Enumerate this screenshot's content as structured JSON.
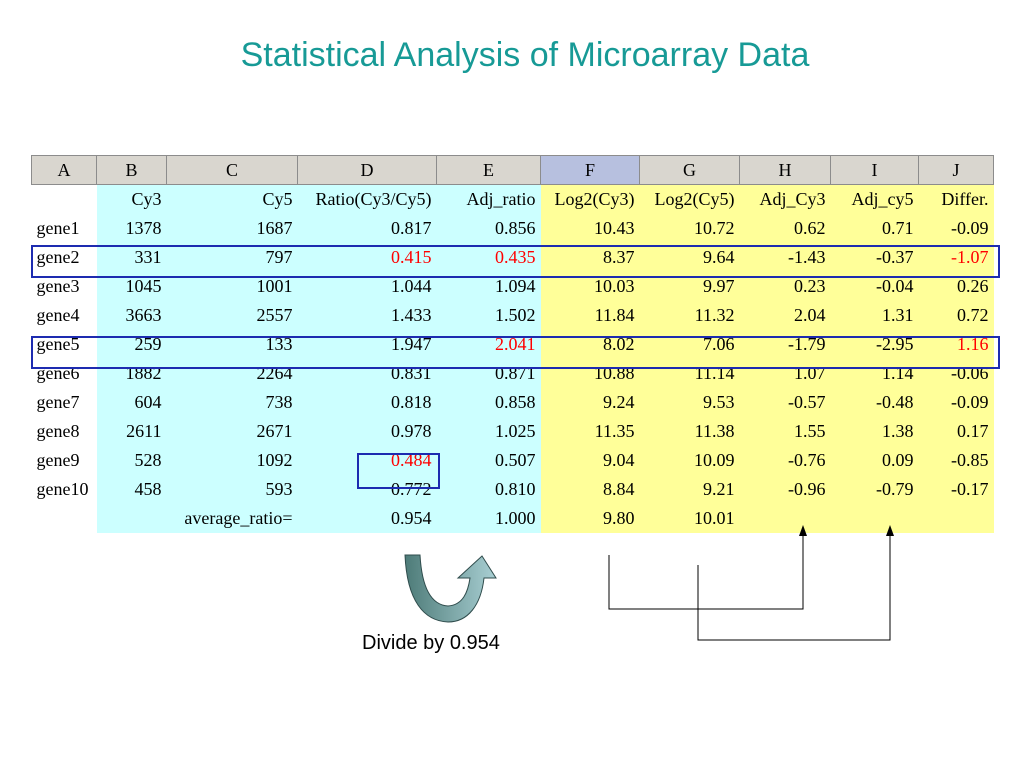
{
  "title": "Statistical Analysis of Microarray Data",
  "caption": "Divide by 0.954",
  "columns": [
    "A",
    "B",
    "C",
    "D",
    "E",
    "F",
    "G",
    "H",
    "I",
    "J"
  ],
  "headers": [
    "",
    "Cy3",
    "Cy5",
    "Ratio(Cy3/Cy5)",
    "Adj_ratio",
    "Log2(Cy3)",
    "Log2(Cy5)",
    "Adj_Cy3",
    "Adj_cy5",
    "Differ."
  ],
  "rows": [
    [
      "gene1",
      "1378",
      "1687",
      "0.817",
      "0.856",
      "10.43",
      "10.72",
      "0.62",
      "0.71",
      "-0.09"
    ],
    [
      "gene2",
      "331",
      "797",
      "0.415",
      "0.435",
      "8.37",
      "9.64",
      "-1.43",
      "-0.37",
      "-1.07"
    ],
    [
      "gene3",
      "1045",
      "1001",
      "1.044",
      "1.094",
      "10.03",
      "9.97",
      "0.23",
      "-0.04",
      "0.26"
    ],
    [
      "gene4",
      "3663",
      "2557",
      "1.433",
      "1.502",
      "11.84",
      "11.32",
      "2.04",
      "1.31",
      "0.72"
    ],
    [
      "gene5",
      "259",
      "133",
      "1.947",
      "2.041",
      "8.02",
      "7.06",
      "-1.79",
      "-2.95",
      "1.16"
    ],
    [
      "gene6",
      "1882",
      "2264",
      "0.831",
      "0.871",
      "10.88",
      "11.14",
      "1.07",
      "1.14",
      "-0.06"
    ],
    [
      "gene7",
      "604",
      "738",
      "0.818",
      "0.858",
      "9.24",
      "9.53",
      "-0.57",
      "-0.48",
      "-0.09"
    ],
    [
      "gene8",
      "2611",
      "2671",
      "0.978",
      "1.025",
      "11.35",
      "11.38",
      "1.55",
      "1.38",
      "0.17"
    ],
    [
      "gene9",
      "528",
      "1092",
      "0.484",
      "0.507",
      "9.04",
      "10.09",
      "-0.76",
      "0.09",
      "-0.85"
    ],
    [
      "gene10",
      "458",
      "593",
      "0.772",
      "0.810",
      "8.84",
      "9.21",
      "-0.96",
      "-0.79",
      "-0.17"
    ]
  ],
  "average_row": {
    "label": "average_ratio=",
    "ratio": "0.954",
    "adj_ratio": "1.000",
    "log2_cy3": "9.80",
    "log2_cy5": "10.01"
  },
  "colors": {
    "title": "#179a96",
    "highlight_text": "#ff0000",
    "box_border": "#1d2bb0",
    "cyan_fill": "#ccffff",
    "yellow_fill": "#ffff99",
    "selected_header": "#b7c0df"
  },
  "highlights": [
    {
      "row": 1,
      "col": 3
    },
    {
      "row": 1,
      "col": 4
    },
    {
      "row": 1,
      "col": 9
    },
    {
      "row": 4,
      "col": 4
    },
    {
      "row": 4,
      "col": 9
    },
    {
      "row": 8,
      "col": 3
    }
  ]
}
